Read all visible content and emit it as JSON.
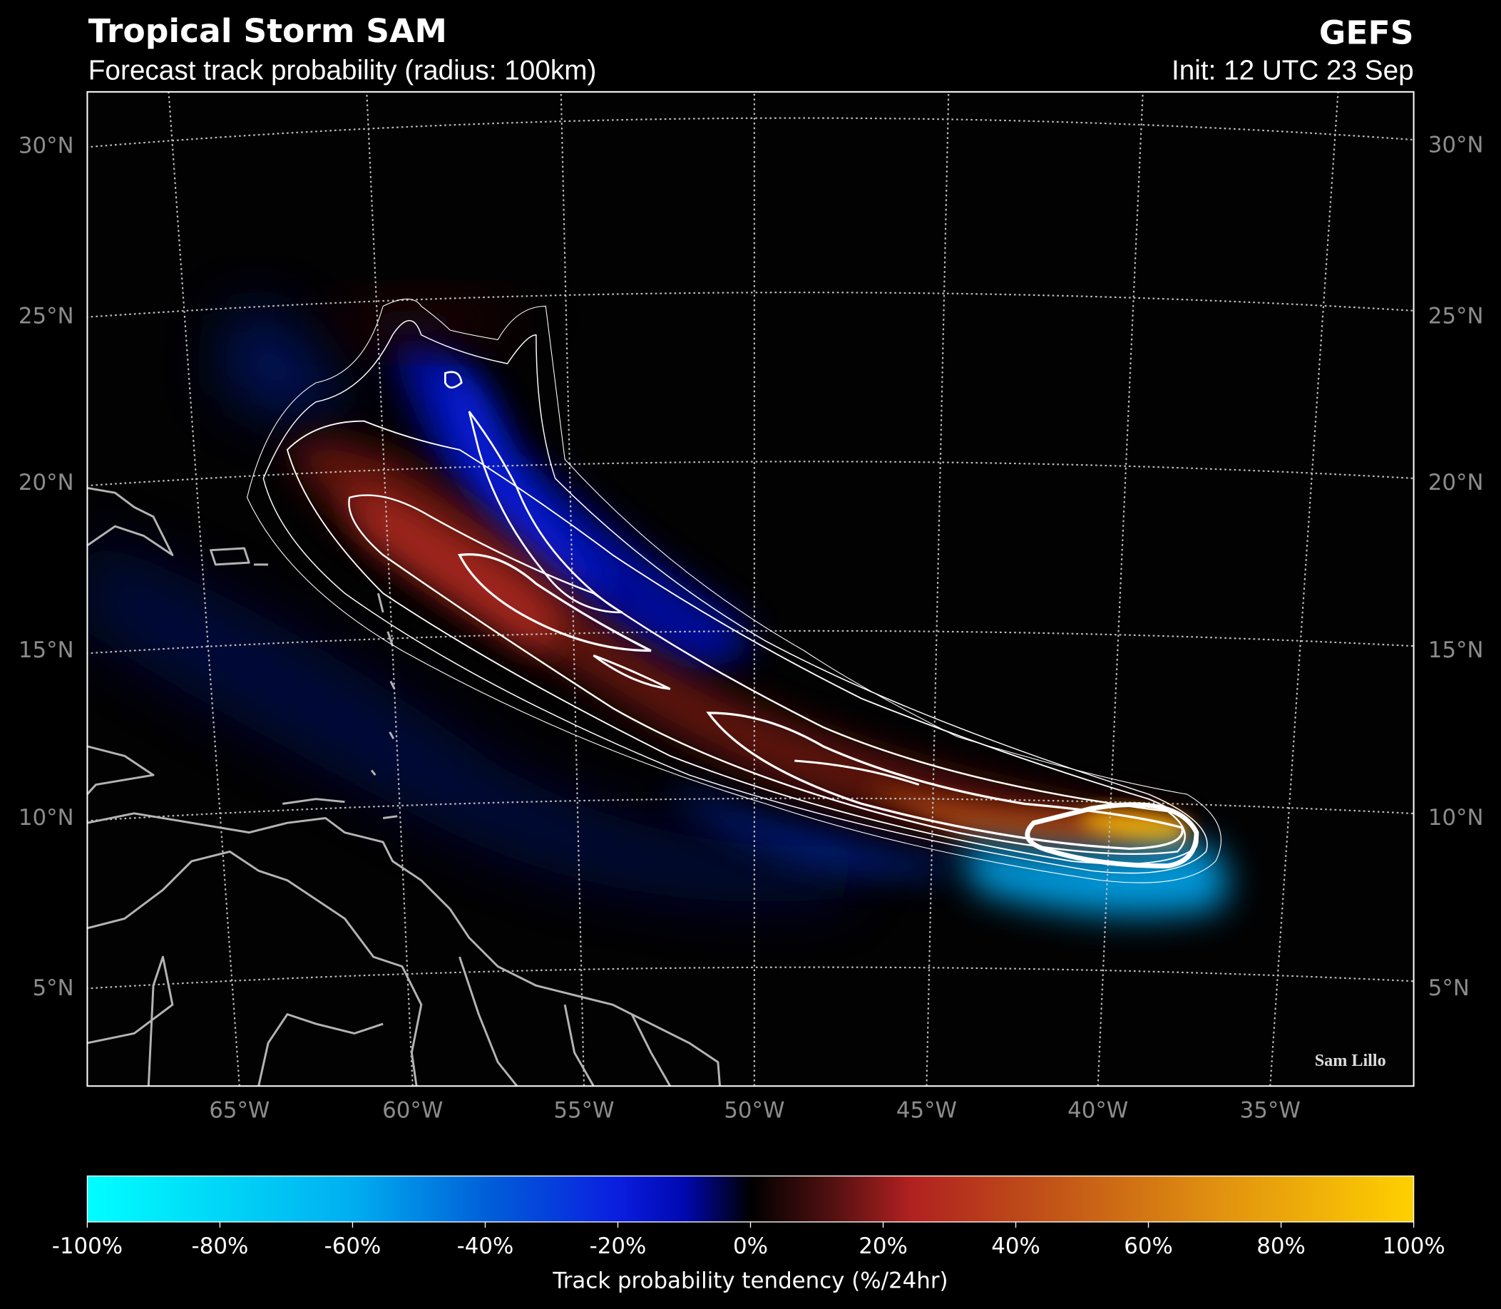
{
  "header": {
    "title": "Tropical Storm SAM",
    "subtitle": "Forecast track probability (radius: 100km)",
    "model": "GEFS",
    "init": "Init: 12 UTC 23 Sep"
  },
  "map": {
    "lat_labels": [
      "30°N",
      "25°N",
      "20°N",
      "15°N",
      "10°N",
      "5°N"
    ],
    "lon_labels": [
      "65°W",
      "60°W",
      "55°W",
      "50°W",
      "45°W",
      "40°W",
      "35°W"
    ],
    "credit": "Sam Lillo"
  },
  "colorbar": {
    "ticks": [
      "-100%",
      "-80%",
      "-60%",
      "-40%",
      "-20%",
      "0%",
      "20%",
      "40%",
      "60%",
      "80%",
      "100%"
    ],
    "label": "Track probability tendency (%/24hr)"
  }
}
